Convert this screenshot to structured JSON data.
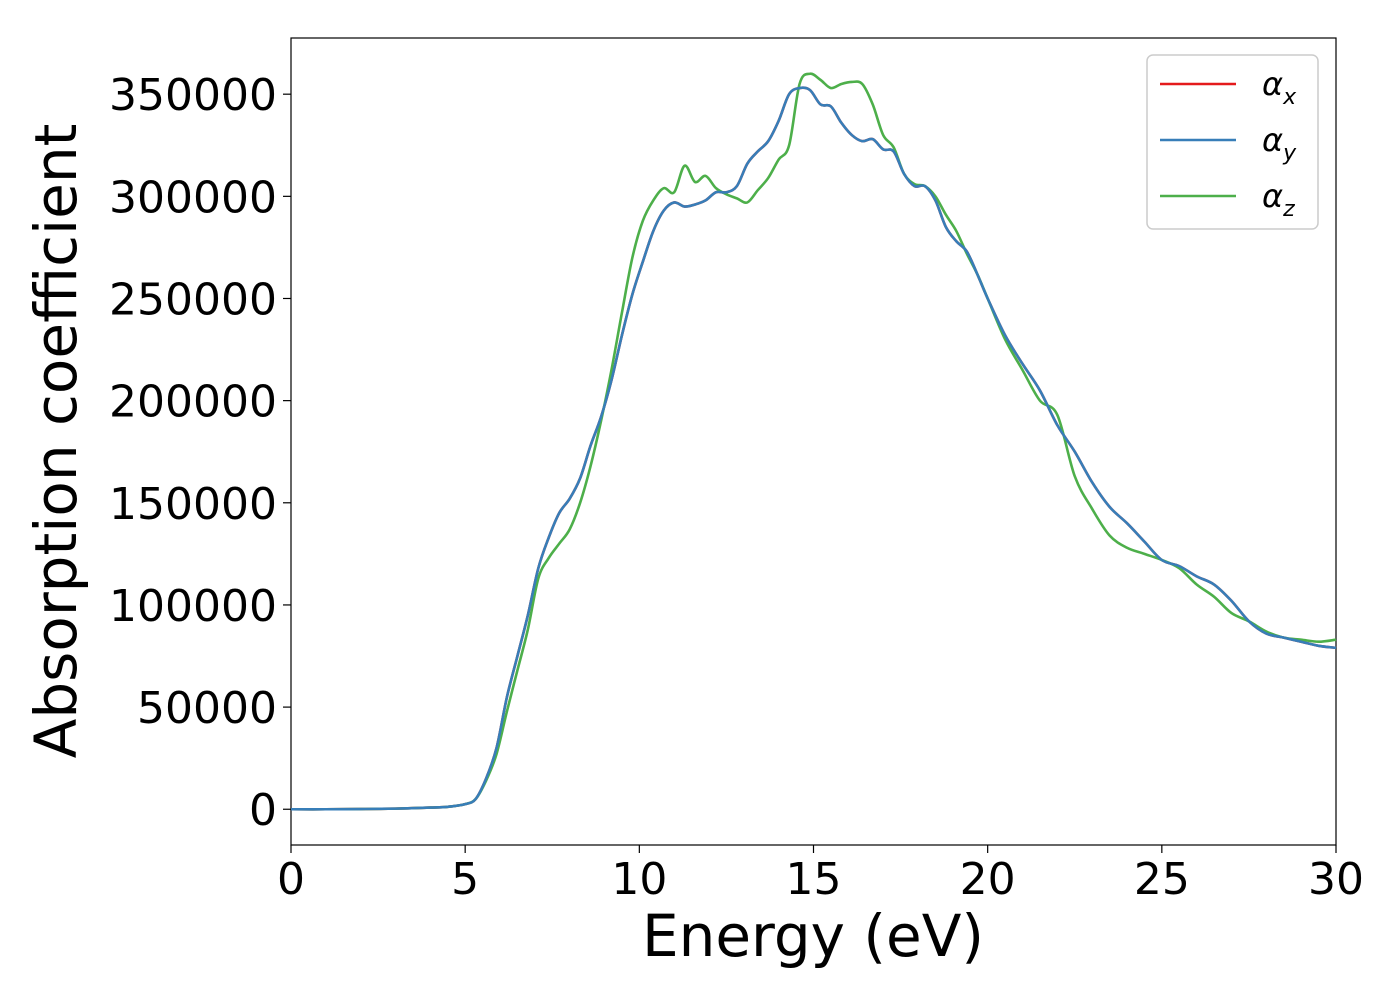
{
  "chart_data": {
    "type": "line",
    "title": "",
    "xlabel": "Energy (eV)",
    "ylabel": "Absorption coefficient",
    "xlim": [
      0,
      30
    ],
    "ylim": [
      -17500,
      377500
    ],
    "xticks": [
      0,
      5,
      10,
      15,
      20,
      25,
      30
    ],
    "yticks": [
      0,
      50000,
      100000,
      150000,
      200000,
      250000,
      300000,
      350000
    ],
    "grid": false,
    "legend_position": "top-right",
    "series": [
      {
        "name": "α",
        "subscript": "x",
        "color": "#e41a1c",
        "x": [
          0,
          1,
          2,
          3,
          4,
          4.5,
          5,
          5.3,
          5.6,
          5.9,
          6.2,
          6.5,
          6.8,
          7.1,
          7.4,
          7.7,
          8,
          8.3,
          8.6,
          8.9,
          9.2,
          9.5,
          9.8,
          10.1,
          10.4,
          10.7,
          11,
          11.3,
          11.6,
          11.9,
          12.2,
          12.5,
          12.8,
          13.1,
          13.4,
          13.7,
          14,
          14.3,
          14.6,
          14.9,
          15.2,
          15.5,
          15.8,
          16.1,
          16.4,
          16.7,
          17,
          17.3,
          17.6,
          17.9,
          18.2,
          18.5,
          18.8,
          19.1,
          19.4,
          19.7,
          20,
          20.5,
          21,
          21.5,
          22,
          22.5,
          23,
          23.5,
          24,
          24.5,
          25,
          25.5,
          26,
          26.5,
          27,
          27.5,
          28,
          28.5,
          29,
          29.5,
          30
        ],
        "y": [
          0,
          0,
          100,
          300,
          800,
          1200,
          2500,
          5000,
          15000,
          30000,
          55000,
          75000,
          95000,
          118000,
          133000,
          145000,
          152000,
          162000,
          178000,
          192000,
          210000,
          232000,
          252000,
          268000,
          283000,
          293000,
          297000,
          295000,
          296000,
          298000,
          302000,
          302000,
          305000,
          316000,
          322000,
          327000,
          337000,
          350000,
          353000,
          352000,
          345000,
          344000,
          336000,
          330000,
          327000,
          328000,
          323000,
          322000,
          311000,
          305000,
          305000,
          298000,
          285000,
          278000,
          273000,
          262000,
          250000,
          232000,
          218000,
          205000,
          188000,
          175000,
          160000,
          148000,
          140000,
          131000,
          122000,
          119000,
          114000,
          110000,
          102000,
          92000,
          86000,
          84000,
          82000,
          80000,
          79000
        ]
      },
      {
        "name": "α",
        "subscript": "y",
        "color": "#377eb8",
        "x": [
          0,
          1,
          2,
          3,
          4,
          4.5,
          5,
          5.3,
          5.6,
          5.9,
          6.2,
          6.5,
          6.8,
          7.1,
          7.4,
          7.7,
          8,
          8.3,
          8.6,
          8.9,
          9.2,
          9.5,
          9.8,
          10.1,
          10.4,
          10.7,
          11,
          11.3,
          11.6,
          11.9,
          12.2,
          12.5,
          12.8,
          13.1,
          13.4,
          13.7,
          14,
          14.3,
          14.6,
          14.9,
          15.2,
          15.5,
          15.8,
          16.1,
          16.4,
          16.7,
          17,
          17.3,
          17.6,
          17.9,
          18.2,
          18.5,
          18.8,
          19.1,
          19.4,
          19.7,
          20,
          20.5,
          21,
          21.5,
          22,
          22.5,
          23,
          23.5,
          24,
          24.5,
          25,
          25.5,
          26,
          26.5,
          27,
          27.5,
          28,
          28.5,
          29,
          29.5,
          30
        ],
        "y": [
          0,
          0,
          100,
          300,
          800,
          1200,
          2500,
          5000,
          15000,
          30000,
          55000,
          75000,
          95000,
          118000,
          133000,
          145000,
          152000,
          162000,
          178000,
          192000,
          210000,
          232000,
          252000,
          268000,
          283000,
          293000,
          297000,
          295000,
          296000,
          298000,
          302000,
          302000,
          305000,
          316000,
          322000,
          327000,
          337000,
          350000,
          353000,
          352000,
          345000,
          344000,
          336000,
          330000,
          327000,
          328000,
          323000,
          322000,
          311000,
          305000,
          305000,
          298000,
          285000,
          278000,
          273000,
          262000,
          250000,
          232000,
          218000,
          205000,
          188000,
          175000,
          160000,
          148000,
          140000,
          131000,
          122000,
          119000,
          114000,
          110000,
          102000,
          92000,
          86000,
          84000,
          82000,
          80000,
          79000
        ]
      },
      {
        "name": "α",
        "subscript": "z",
        "color": "#4daf4a",
        "x": [
          0,
          1,
          2,
          3,
          4,
          4.5,
          5,
          5.3,
          5.6,
          5.9,
          6.2,
          6.5,
          6.8,
          7.1,
          7.4,
          7.7,
          8,
          8.3,
          8.6,
          8.9,
          9.2,
          9.5,
          9.8,
          10.1,
          10.4,
          10.7,
          11,
          11.3,
          11.6,
          11.9,
          12.2,
          12.5,
          12.8,
          13.1,
          13.4,
          13.7,
          14,
          14.3,
          14.6,
          14.9,
          15.2,
          15.5,
          15.8,
          16.1,
          16.4,
          16.7,
          17,
          17.3,
          17.6,
          17.9,
          18.2,
          18.5,
          18.8,
          19.1,
          19.4,
          19.7,
          20,
          20.5,
          21,
          21.5,
          22,
          22.5,
          23,
          23.5,
          24,
          24.5,
          25,
          25.5,
          26,
          26.5,
          27,
          27.5,
          28,
          28.5,
          29,
          29.5,
          30
        ],
        "y": [
          0,
          0,
          100,
          300,
          800,
          1200,
          2500,
          5000,
          14000,
          27000,
          48000,
          68000,
          88000,
          113000,
          123000,
          130000,
          137000,
          150000,
          168000,
          190000,
          215000,
          243000,
          270000,
          288000,
          298000,
          304000,
          302000,
          315000,
          307000,
          310000,
          304000,
          301000,
          299000,
          297000,
          303000,
          309000,
          318000,
          325000,
          355000,
          360000,
          357000,
          353000,
          355000,
          356000,
          355000,
          345000,
          330000,
          324000,
          311000,
          306000,
          305000,
          300000,
          291000,
          283000,
          272000,
          262000,
          250000,
          230000,
          215000,
          200000,
          193000,
          163000,
          147000,
          134000,
          128000,
          125000,
          122000,
          118000,
          110000,
          104000,
          96000,
          92000,
          87000,
          84000,
          83000,
          82000,
          83000
        ]
      }
    ]
  }
}
